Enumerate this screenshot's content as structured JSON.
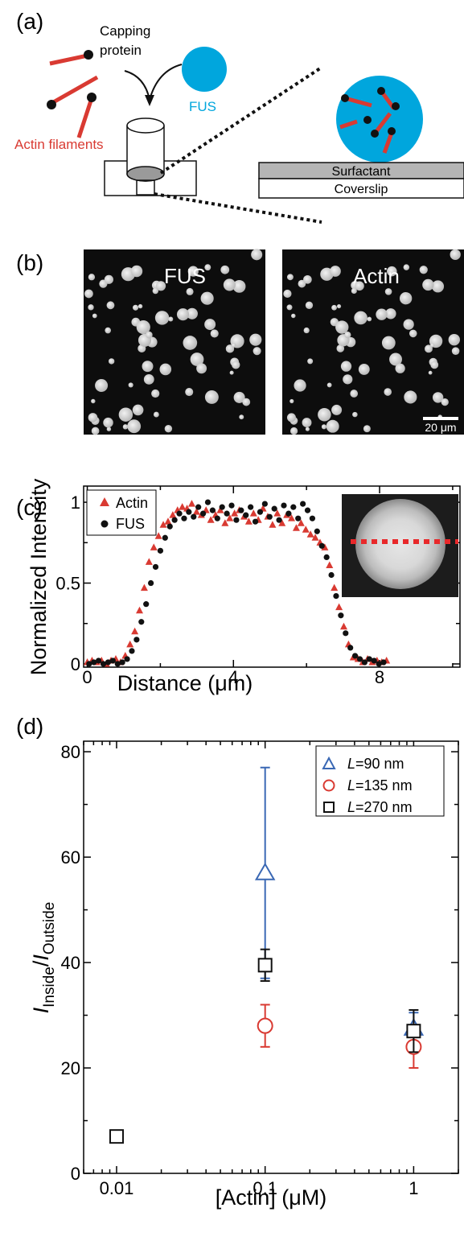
{
  "panels": {
    "a": {
      "label": "(a)",
      "capping_protein_line1": "Capping",
      "capping_protein_line2": "protein",
      "fus": "FUS",
      "actin_filaments": "Actin filaments",
      "surfactant": "Surfactant",
      "coverslip": "Coverslip"
    },
    "b": {
      "label": "(b)",
      "fus_title": "FUS",
      "actin_title": "Actin",
      "scalebar": "20 μm"
    },
    "c": {
      "label": "(c)"
    },
    "d": {
      "label": "(d)"
    }
  },
  "colors": {
    "actin": "#d93a32",
    "fus_cyan": "#00a6dd",
    "blue": "#3a68b4",
    "red": "#d93a32",
    "black": "#111111",
    "surfactant": "#b5b5b5"
  },
  "chart_data": [
    {
      "panel": "c",
      "type": "scatter",
      "xlabel": "Distance (μm)",
      "ylabel": "Normalized Intensity",
      "xlim": [
        -0.1,
        10.2
      ],
      "ylim": [
        -0.02,
        1.1
      ],
      "xticks": [
        0,
        4,
        8
      ],
      "xtick_labels": [
        "0",
        "4",
        "8"
      ],
      "yticks": [
        0,
        0.5,
        1
      ],
      "ytick_labels": [
        "0",
        "0.5",
        "1"
      ],
      "legend": "top-left",
      "grid": false,
      "series": [
        {
          "name": "Actin",
          "marker": "triangle",
          "color": "#d93a32",
          "x": [
            0.0,
            0.13,
            0.26,
            0.39,
            0.52,
            0.65,
            0.78,
            0.91,
            1.04,
            1.17,
            1.3,
            1.43,
            1.56,
            1.69,
            1.82,
            1.95,
            2.08,
            2.21,
            2.34,
            2.47,
            2.6,
            2.73,
            2.86,
            2.99,
            3.12,
            3.25,
            3.38,
            3.51,
            3.64,
            3.77,
            3.9,
            4.03,
            4.16,
            4.29,
            4.42,
            4.55,
            4.68,
            4.81,
            4.94,
            5.07,
            5.2,
            5.33,
            5.46,
            5.59,
            5.72,
            5.85,
            5.98,
            6.11,
            6.24,
            6.37,
            6.5,
            6.63,
            6.76,
            6.89,
            7.02,
            7.15,
            7.28,
            7.41,
            7.54,
            7.67,
            7.8,
            7.93,
            8.06,
            8.19
          ],
          "y": [
            0.01,
            0.02,
            0.01,
            0.02,
            0.0,
            0.02,
            0.03,
            0.01,
            0.05,
            0.12,
            0.2,
            0.33,
            0.47,
            0.63,
            0.72,
            0.79,
            0.86,
            0.88,
            0.92,
            0.95,
            0.97,
            0.96,
            0.99,
            0.94,
            0.92,
            0.95,
            0.89,
            0.92,
            0.95,
            0.87,
            0.9,
            0.93,
            0.95,
            0.91,
            0.88,
            0.93,
            0.89,
            0.96,
            0.91,
            0.86,
            0.93,
            0.87,
            0.92,
            0.9,
            0.84,
            0.87,
            0.83,
            0.8,
            0.78,
            0.75,
            0.72,
            0.61,
            0.47,
            0.35,
            0.23,
            0.12,
            0.04,
            0.03,
            0.01,
            0.03,
            0.01,
            0.02,
            0.01,
            0.02
          ]
        },
        {
          "name": "FUS",
          "marker": "circle",
          "color": "#111111",
          "x": [
            0.05,
            0.18,
            0.31,
            0.44,
            0.57,
            0.7,
            0.83,
            0.96,
            1.09,
            1.22,
            1.35,
            1.48,
            1.61,
            1.74,
            1.87,
            2.0,
            2.13,
            2.26,
            2.39,
            2.52,
            2.65,
            2.78,
            2.91,
            3.04,
            3.17,
            3.3,
            3.43,
            3.56,
            3.69,
            3.82,
            3.95,
            4.08,
            4.21,
            4.34,
            4.47,
            4.6,
            4.73,
            4.86,
            4.99,
            5.12,
            5.25,
            5.38,
            5.51,
            5.64,
            5.77,
            5.9,
            6.03,
            6.16,
            6.29,
            6.42,
            6.55,
            6.68,
            6.81,
            6.94,
            7.07,
            7.2,
            7.33,
            7.46,
            7.59,
            7.72,
            7.85,
            7.98,
            8.11
          ],
          "y": [
            0.0,
            0.01,
            0.02,
            0.0,
            0.01,
            0.02,
            0.0,
            0.01,
            0.03,
            0.08,
            0.15,
            0.26,
            0.37,
            0.5,
            0.6,
            0.7,
            0.78,
            0.85,
            0.89,
            0.93,
            0.9,
            0.94,
            0.91,
            0.97,
            0.93,
            1.0,
            0.95,
            0.9,
            0.97,
            0.93,
            0.98,
            0.89,
            0.95,
            0.92,
            0.97,
            0.88,
            0.94,
            0.99,
            0.91,
            0.96,
            0.89,
            0.98,
            0.93,
            0.97,
            0.9,
            0.99,
            0.95,
            0.9,
            0.82,
            0.73,
            0.66,
            0.55,
            0.42,
            0.3,
            0.19,
            0.1,
            0.05,
            0.03,
            0.01,
            0.03,
            0.02,
            0.0,
            0.01
          ]
        }
      ]
    },
    {
      "panel": "d",
      "type": "scatter",
      "xlabel": "[Actin] (μM)",
      "ylabel_main": "I",
      "ylabel_sub1": "Inside",
      "ylabel_slash": "/",
      "ylabel_sub2": "Outside",
      "xscale": "log",
      "xlim": [
        0.006,
        2.0
      ],
      "ylim": [
        0,
        82
      ],
      "xticks": [
        0.01,
        0.1,
        1
      ],
      "xtick_labels": [
        "0.01",
        "0.1",
        "1"
      ],
      "yticks": [
        0,
        20,
        40,
        60,
        80
      ],
      "ytick_labels": [
        "0",
        "20",
        "40",
        "60",
        "80"
      ],
      "legend": "top-right",
      "grid": false,
      "series": [
        {
          "name_var": "L",
          "name_rest": "=90 nm",
          "marker": "triangle",
          "color": "#3a68b4",
          "x": [
            0.1,
            1
          ],
          "y": [
            57,
            27.5
          ],
          "yerr": [
            20,
            3
          ]
        },
        {
          "name_var": "L",
          "name_rest": "=135 nm",
          "marker": "circle",
          "color": "#d93a32",
          "x": [
            0.1,
            1
          ],
          "y": [
            28,
            24
          ],
          "yerr": [
            4,
            4
          ]
        },
        {
          "name_var": "L",
          "name_rest": "=270 nm",
          "marker": "square",
          "color": "#111111",
          "x": [
            0.01,
            0.1,
            1
          ],
          "y": [
            7,
            39.5,
            27
          ],
          "yerr": [
            1,
            3,
            4
          ]
        }
      ]
    }
  ]
}
